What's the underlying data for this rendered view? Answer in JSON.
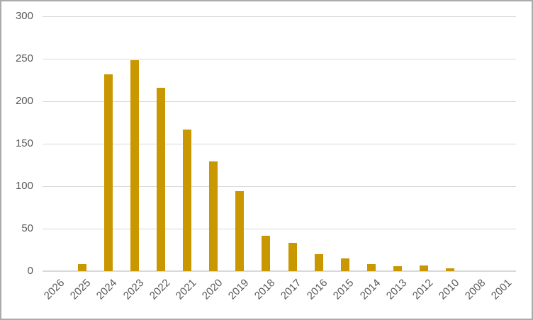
{
  "chart_data": {
    "type": "bar",
    "title": "",
    "xlabel": "",
    "ylabel": "",
    "categories": [
      "2026",
      "2025",
      "2024",
      "2023",
      "2022",
      "2021",
      "2020",
      "2019",
      "2018",
      "2017",
      "2016",
      "2015",
      "2014",
      "2013",
      "2012",
      "2010",
      "2008",
      "2001"
    ],
    "values": [
      0,
      8,
      232,
      248,
      216,
      167,
      129,
      94,
      42,
      33,
      20,
      15,
      8,
      6,
      7,
      3,
      0,
      0
    ],
    "ylim": [
      0,
      300
    ],
    "y_ticks": [
      0,
      50,
      100,
      150,
      200,
      250,
      300
    ],
    "grid": true,
    "legend": false,
    "x_label_rotation": -45,
    "bar_color": "#C99700",
    "axis_text_color": "#595959",
    "gridline_color": "#D9D9D9",
    "border_color": "#ABABAB"
  }
}
